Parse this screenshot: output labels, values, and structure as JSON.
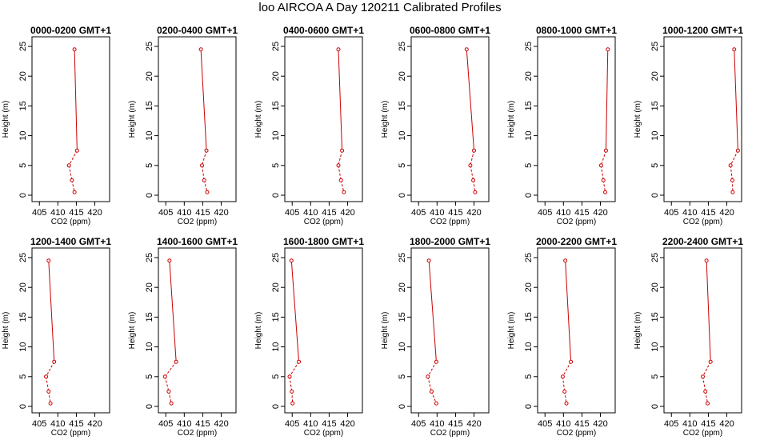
{
  "title": "loo AIRCOA A  Day 120211  Calibrated Profiles",
  "colors": {
    "series": "#cc0000",
    "axis": "#000000",
    "background": "#ffffff"
  },
  "chart_data": {
    "type": "line",
    "xlabel": "CO2 (ppm)",
    "ylabel": "Height (m)",
    "xlim": [
      403,
      424
    ],
    "ylim": [
      0,
      25
    ],
    "xticks": [
      405,
      410,
      415,
      420
    ],
    "yticks": [
      0,
      5,
      10,
      15,
      20,
      25
    ],
    "heights": [
      24.5,
      7.5,
      5.0,
      2.5,
      0.5
    ],
    "grid": false,
    "legend": "none",
    "panels": [
      {
        "title": "0000-0200 GMT+1",
        "x": [
          414.5,
          415.2,
          413.0,
          413.8,
          414.5
        ]
      },
      {
        "title": "0200-0400 GMT+1",
        "x": [
          414.5,
          416.0,
          414.8,
          415.4,
          416.2
        ]
      },
      {
        "title": "0400-0600 GMT+1",
        "x": [
          417.5,
          418.5,
          417.5,
          418.2,
          419.0
        ]
      },
      {
        "title": "0600-0800 GMT+1",
        "x": [
          418.0,
          420.0,
          419.0,
          419.8,
          420.3
        ]
      },
      {
        "title": "0800-1000 GMT+1",
        "x": [
          422.0,
          421.5,
          420.2,
          420.8,
          421.3
        ]
      },
      {
        "title": "1000-1200 GMT+1",
        "x": [
          422.0,
          423.0,
          421.0,
          421.5,
          421.6
        ]
      },
      {
        "title": "1200-1400 GMT+1",
        "x": [
          407.5,
          409.0,
          406.8,
          407.5,
          408.0
        ]
      },
      {
        "title": "1400-1600 GMT+1",
        "x": [
          406.0,
          407.8,
          404.8,
          405.8,
          406.5
        ]
      },
      {
        "title": "1600-1800 GMT+1",
        "x": [
          404.8,
          406.8,
          404.3,
          404.9,
          405.1
        ]
      },
      {
        "title": "1800-2000 GMT+1",
        "x": [
          407.8,
          409.8,
          407.5,
          408.5,
          409.8
        ]
      },
      {
        "title": "2000-2200 GMT+1",
        "x": [
          410.5,
          412.0,
          409.8,
          410.3,
          410.8
        ]
      },
      {
        "title": "2200-2400 GMT+1",
        "x": [
          414.5,
          415.6,
          413.5,
          414.2,
          414.8
        ]
      }
    ]
  }
}
